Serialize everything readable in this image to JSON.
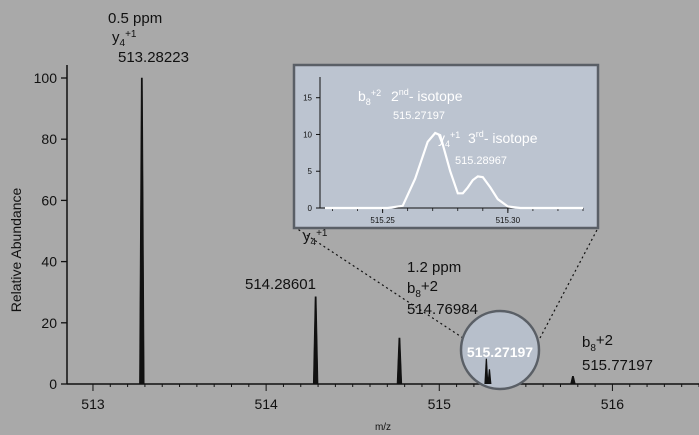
{
  "chart_data": [
    {
      "type": "line",
      "xlabel": "m/z",
      "ylabel": "Relative Abundance",
      "xlim": [
        512.85,
        516.5
      ],
      "ylim": [
        0,
        105
      ],
      "x_ticks": [
        513,
        514,
        515,
        516
      ],
      "y_ticks": [
        0,
        20,
        40,
        60,
        80,
        100
      ],
      "peaks": [
        {
          "x": 513.28223,
          "y": 100
        },
        {
          "x": 514.28601,
          "y": 28.5
        },
        {
          "x": 514.76984,
          "y": 15
        },
        {
          "x": 515.27197,
          "y": 7
        },
        {
          "x": 515.28967,
          "y": 3.5
        },
        {
          "x": 515.77197,
          "y": 2.5
        }
      ],
      "annotations": [
        {
          "id": "a1",
          "lines": [
            "0.5 ppm",
            "y4+1",
            "513.28223"
          ]
        },
        {
          "id": "a2",
          "lines": [
            "y4+1",
            "514.28601"
          ]
        },
        {
          "id": "a3",
          "lines": [
            "1.2 ppm",
            "b8+2",
            "514.76984"
          ]
        },
        {
          "id": "a4",
          "lines": [
            "b8+2",
            "515.77197"
          ]
        },
        {
          "id": "a5",
          "lines": [
            "515.27197"
          ]
        }
      ]
    },
    {
      "type": "line",
      "xlim": [
        515.225,
        515.33
      ],
      "ylim": [
        0,
        17
      ],
      "x_ticks": [
        515.25,
        515.3
      ],
      "x_minor_step": 0.01,
      "y_ticks": [
        0,
        5,
        10,
        15
      ],
      "x": [
        515.227,
        515.252,
        515.258,
        515.263,
        515.268,
        515.271,
        515.273,
        515.277,
        515.28,
        515.282,
        515.284,
        515.286,
        515.288,
        515.29,
        515.293,
        515.296,
        515.3,
        515.305,
        515.33
      ],
      "y": [
        0,
        0,
        0.3,
        4,
        9,
        10.2,
        9.9,
        5,
        2,
        2,
        2.8,
        3.8,
        4.3,
        4.2,
        2.8,
        1.2,
        0.2,
        0,
        0
      ],
      "annotations": [
        {
          "id": "i1",
          "lines": [
            "b8+2",
            "2nd- isotope",
            "515.27197"
          ]
        },
        {
          "id": "i2",
          "lines": [
            "y4+1",
            "3rd- isotope",
            "515.28967"
          ]
        }
      ]
    }
  ]
}
